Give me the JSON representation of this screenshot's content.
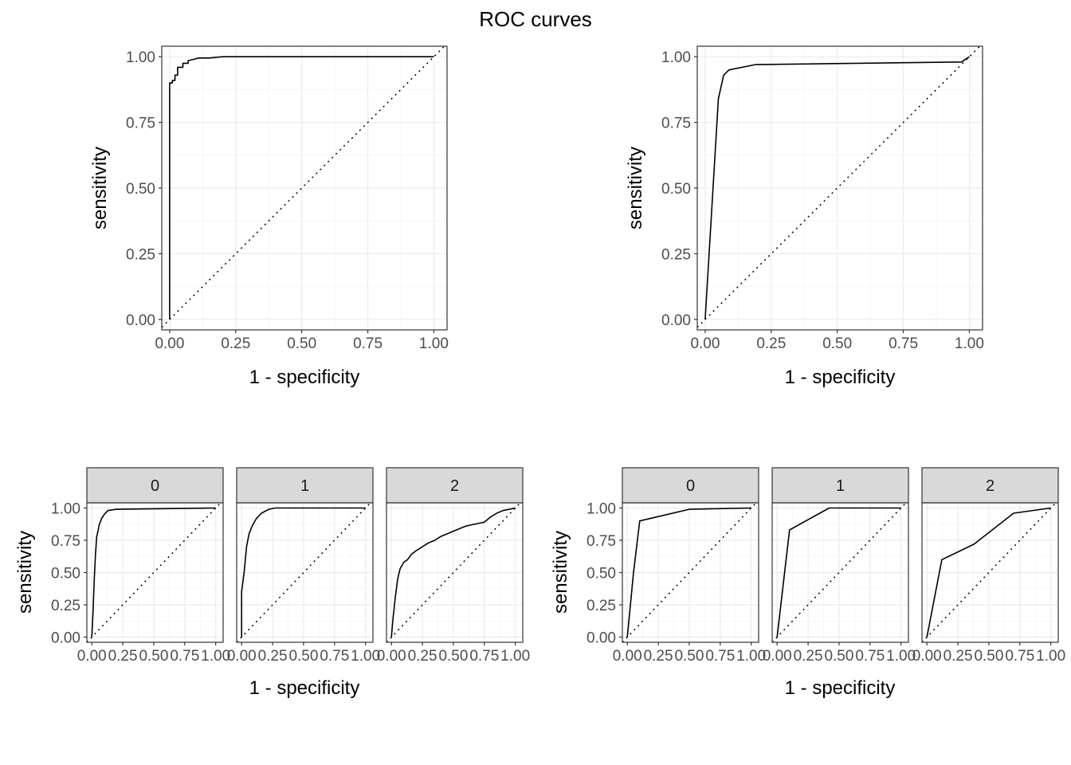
{
  "figure": {
    "title": "ROC curves"
  },
  "chart_data": [
    {
      "type": "line",
      "xlabel": "1 - specificity",
      "ylabel": "sensitivity",
      "xlim": [
        -0.03,
        1.05
      ],
      "ylim": [
        -0.04,
        1.04
      ],
      "x_ticks": [
        "0.00",
        "0.25",
        "0.50",
        "0.75",
        "1.00"
      ],
      "y_ticks": [
        "0.00",
        "0.25",
        "0.50",
        "0.75",
        "1.00"
      ],
      "reference_line": "diagonal dotted",
      "grid": true,
      "series": [
        {
          "x": [
            0.0,
            0.0,
            0.0,
            0.0,
            0.0,
            0.01,
            0.01,
            0.02,
            0.02,
            0.03,
            0.03,
            0.05,
            0.05,
            0.06,
            0.07,
            0.07,
            0.09,
            0.11,
            0.15,
            0.2,
            1.0
          ],
          "y": [
            0.0,
            0.35,
            0.7,
            0.9,
            0.9,
            0.9,
            0.91,
            0.91,
            0.93,
            0.93,
            0.96,
            0.96,
            0.975,
            0.975,
            0.975,
            0.985,
            0.99,
            0.995,
            0.995,
            1.0,
            1.0
          ]
        }
      ]
    },
    {
      "type": "line",
      "xlabel": "1 - specificity",
      "ylabel": "sensitivity",
      "xlim": [
        -0.03,
        1.05
      ],
      "ylim": [
        -0.04,
        1.04
      ],
      "x_ticks": [
        "0.00",
        "0.25",
        "0.50",
        "0.75",
        "1.00"
      ],
      "y_ticks": [
        "0.00",
        "0.25",
        "0.50",
        "0.75",
        "1.00"
      ],
      "reference_line": "diagonal dotted",
      "grid": true,
      "series": [
        {
          "x": [
            0.0,
            0.05,
            0.07,
            0.09,
            0.19,
            0.97,
            1.0
          ],
          "y": [
            0.0,
            0.84,
            0.93,
            0.95,
            0.97,
            0.98,
            1.0
          ]
        }
      ]
    },
    {
      "type": "line",
      "facets": [
        "0",
        "1",
        "2"
      ],
      "xlabel": "1 - specificity",
      "ylabel": "sensitivity",
      "xlim": [
        -0.04,
        1.06
      ],
      "ylim": [
        -0.04,
        1.04
      ],
      "x_ticks": [
        "0.00",
        "0.25",
        "0.50",
        "0.75",
        "1.00"
      ],
      "y_ticks": [
        "0.00",
        "0.25",
        "0.50",
        "0.75",
        "1.00"
      ],
      "reference_line": "diagonal dotted",
      "grid": true,
      "series": [
        {
          "x": [
            0.0,
            0.01,
            0.02,
            0.03,
            0.04,
            0.05,
            0.06,
            0.08,
            0.1,
            0.13,
            0.16,
            0.2,
            1.0
          ],
          "y": [
            0.0,
            0.2,
            0.45,
            0.65,
            0.78,
            0.82,
            0.87,
            0.92,
            0.95,
            0.98,
            0.985,
            0.99,
            1.0
          ]
        },
        {
          "x": [
            0.0,
            0.0,
            0.02,
            0.04,
            0.06,
            0.09,
            0.12,
            0.16,
            0.22,
            0.27,
            0.3,
            1.0
          ],
          "y": [
            0.0,
            0.35,
            0.5,
            0.7,
            0.8,
            0.87,
            0.92,
            0.96,
            0.99,
            1.0,
            1.0,
            1.0
          ]
        },
        {
          "x": [
            0.0,
            0.01,
            0.03,
            0.05,
            0.07,
            0.1,
            0.13,
            0.16,
            0.2,
            0.25,
            0.3,
            0.35,
            0.4,
            0.45,
            0.5,
            0.55,
            0.6,
            0.65,
            0.7,
            0.75,
            0.8,
            0.85,
            0.9,
            0.95,
            1.0
          ],
          "y": [
            0.0,
            0.12,
            0.3,
            0.45,
            0.53,
            0.58,
            0.6,
            0.64,
            0.67,
            0.7,
            0.73,
            0.75,
            0.78,
            0.8,
            0.82,
            0.84,
            0.86,
            0.87,
            0.88,
            0.89,
            0.93,
            0.96,
            0.98,
            0.99,
            1.0
          ]
        }
      ]
    },
    {
      "type": "line",
      "facets": [
        "0",
        "1",
        "2"
      ],
      "xlabel": "1 - specificity",
      "ylabel": "sensitivity",
      "xlim": [
        -0.04,
        1.06
      ],
      "ylim": [
        -0.04,
        1.04
      ],
      "x_ticks": [
        "0.00",
        "0.25",
        "0.50",
        "0.75",
        "1.00"
      ],
      "y_ticks": [
        "0.00",
        "0.25",
        "0.50",
        "0.75",
        "1.00"
      ],
      "reference_line": "diagonal dotted",
      "grid": true,
      "series": [
        {
          "x": [
            0.0,
            0.05,
            0.1,
            0.5,
            1.0
          ],
          "y": [
            0.0,
            0.5,
            0.9,
            0.99,
            1.0
          ]
        },
        {
          "x": [
            0.0,
            0.1,
            0.42,
            1.0
          ],
          "y": [
            0.0,
            0.83,
            1.0,
            1.0
          ]
        },
        {
          "x": [
            0.0,
            0.12,
            0.38,
            0.7,
            1.0
          ],
          "y": [
            0.0,
            0.6,
            0.72,
            0.96,
            1.0
          ]
        }
      ]
    }
  ]
}
